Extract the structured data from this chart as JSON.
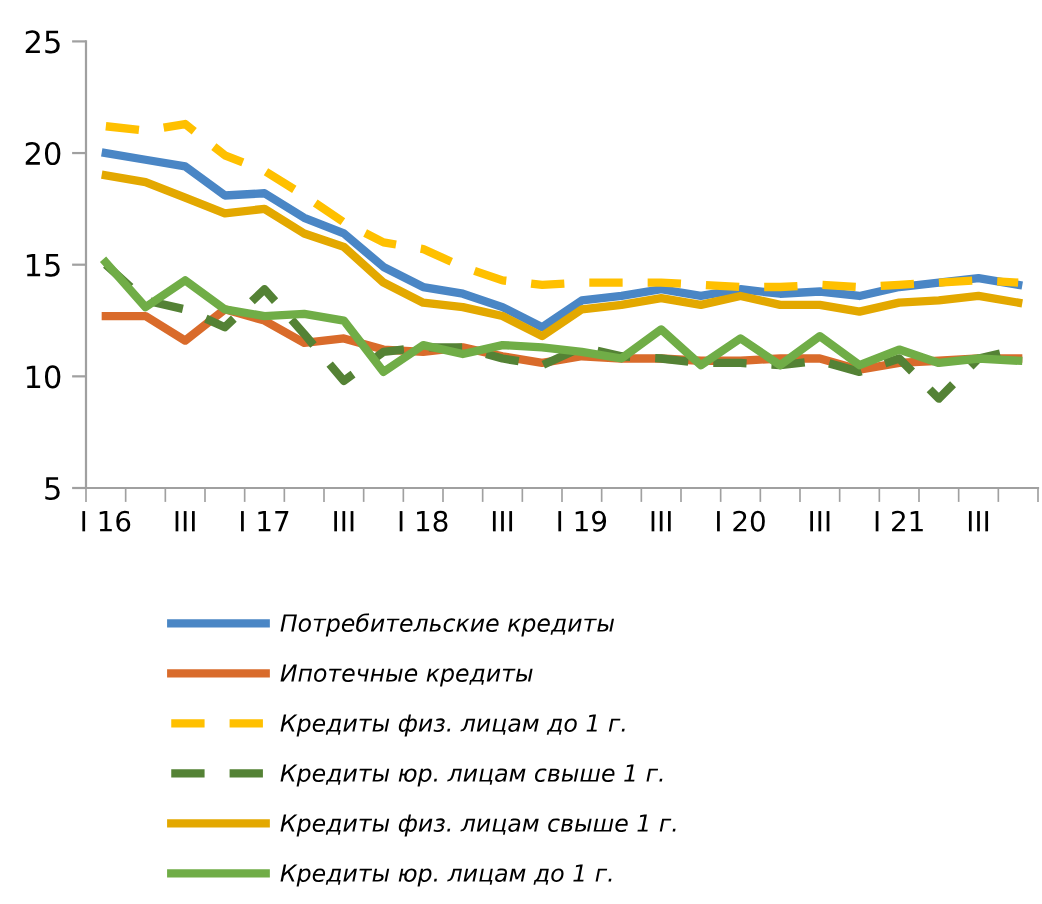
{
  "chart_data": {
    "type": "line",
    "categories": [
      "I 16",
      null,
      "III",
      null,
      "I 17",
      null,
      "III",
      null,
      "I 18",
      null,
      "III",
      null,
      "I 19",
      null,
      "III",
      null,
      "I 20",
      null,
      "III",
      null,
      "I 21",
      null,
      "III",
      null
    ],
    "ylim": [
      5,
      25
    ],
    "yticks": [
      5,
      10,
      15,
      20,
      25
    ],
    "grid": false,
    "legend": "bottom",
    "marker": "none",
    "series": [
      {
        "name": "Потребительские кредиты",
        "color": "#4a86c5",
        "line_style": "solid",
        "values": [
          20.0,
          19.7,
          19.4,
          18.1,
          18.2,
          17.1,
          16.4,
          14.9,
          14.0,
          13.7,
          13.1,
          12.2,
          13.4,
          13.6,
          13.9,
          13.6,
          13.9,
          13.7,
          13.8,
          13.6,
          14.0,
          14.2,
          14.4,
          14.1
        ]
      },
      {
        "name": "Ипотечные кредиты",
        "color": "#d96b2b",
        "line_style": "solid",
        "values": [
          12.7,
          12.7,
          11.6,
          13.0,
          12.5,
          11.5,
          11.7,
          11.2,
          11.1,
          11.3,
          10.9,
          10.6,
          10.9,
          10.8,
          10.8,
          10.7,
          10.7,
          10.8,
          10.8,
          10.3,
          10.6,
          10.7,
          10.8,
          10.8
        ]
      },
      {
        "name": "Кредиты физ. лицам до 1 г.",
        "color": "#ffc000",
        "line_style": "dashed",
        "values": [
          21.2,
          21.0,
          21.3,
          19.9,
          19.2,
          18.1,
          16.9,
          16.0,
          15.7,
          14.9,
          14.3,
          14.1,
          14.2,
          14.2,
          14.2,
          14.1,
          14.0,
          14.0,
          14.1,
          14.0,
          14.1,
          14.2,
          14.3,
          14.2
        ]
      },
      {
        "name": "Кредиты юр. лицам свыше 1 г.",
        "color": "#548235",
        "line_style": "dashed",
        "values": [
          15.0,
          13.4,
          13.0,
          12.2,
          13.9,
          11.9,
          9.8,
          11.1,
          11.3,
          11.3,
          10.8,
          10.5,
          11.3,
          10.9,
          10.8,
          10.6,
          10.6,
          10.5,
          10.7,
          10.2,
          10.8,
          9.0,
          10.8,
          11.2
        ]
      },
      {
        "name": "Кредиты физ. лицам свыше 1 г.",
        "color": "#e3a800",
        "line_style": "solid",
        "values": [
          19.0,
          18.7,
          18.0,
          17.3,
          17.5,
          16.4,
          15.8,
          14.2,
          13.3,
          13.1,
          12.7,
          11.8,
          13.0,
          13.2,
          13.5,
          13.2,
          13.6,
          13.2,
          13.2,
          12.9,
          13.3,
          13.4,
          13.6,
          13.3
        ]
      },
      {
        "name": "Кредиты юр. лицам до 1 г.",
        "color": "#70ad47",
        "line_style": "solid",
        "values": [
          15.1,
          13.1,
          14.3,
          13.0,
          12.7,
          12.8,
          12.5,
          10.2,
          11.4,
          11.0,
          11.4,
          11.3,
          11.1,
          10.8,
          12.1,
          10.5,
          11.7,
          10.5,
          11.8,
          10.5,
          11.2,
          10.6,
          10.8,
          10.7
        ]
      }
    ]
  }
}
